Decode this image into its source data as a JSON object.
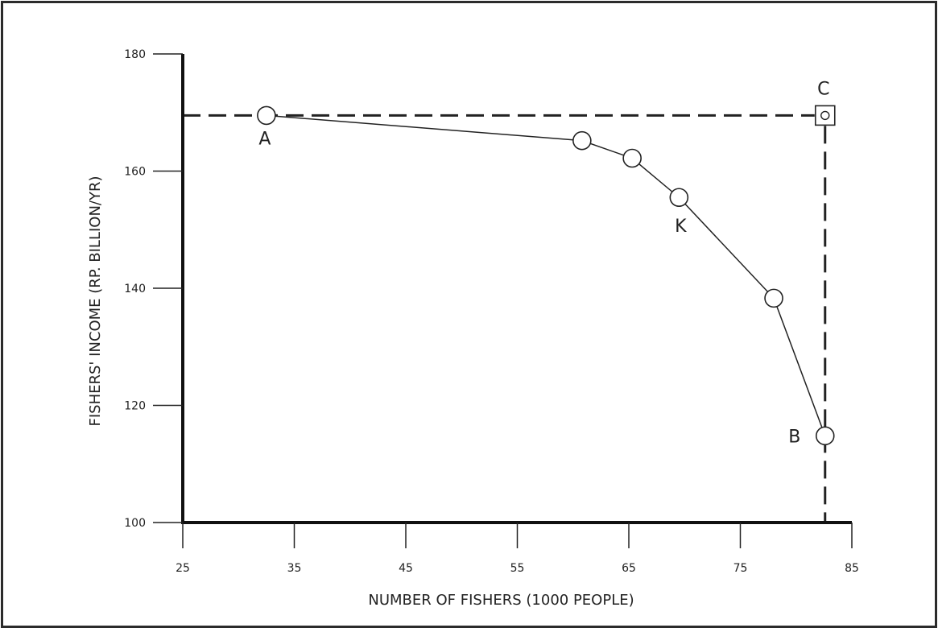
{
  "chart_data": {
    "type": "line",
    "title": "",
    "xlabel": "NUMBER OF FISHERS (1000 PEOPLE)",
    "ylabel": "FISHERS' INCOME (RP. BILLION/YR)",
    "xlim": [
      25,
      85
    ],
    "ylim": [
      100,
      180
    ],
    "xticks": [
      25,
      35,
      45,
      55,
      65,
      75,
      85
    ],
    "yticks": [
      100,
      120,
      140,
      160,
      180
    ],
    "grid": false,
    "series": [
      {
        "points": [
          {
            "x": 32.5,
            "y": 169.5,
            "label": "A"
          },
          {
            "x": 60.8,
            "y": 165.2,
            "label": ""
          },
          {
            "x": 65.3,
            "y": 162.2,
            "label": ""
          },
          {
            "x": 69.5,
            "y": 155.5,
            "label": "K"
          },
          {
            "x": 78.0,
            "y": 138.3,
            "label": ""
          },
          {
            "x": 82.6,
            "y": 114.8,
            "label": "B"
          }
        ]
      }
    ],
    "reference_point": {
      "x": 82.6,
      "y": 169.5,
      "label": "C"
    },
    "reference_lines": [
      {
        "orientation": "horizontal",
        "value": 169.5,
        "style": "dashed"
      },
      {
        "orientation": "vertical",
        "value": 82.6,
        "style": "dashed"
      }
    ],
    "colors": {
      "ink": "#222222",
      "marker_fill": "#ffffff"
    }
  }
}
